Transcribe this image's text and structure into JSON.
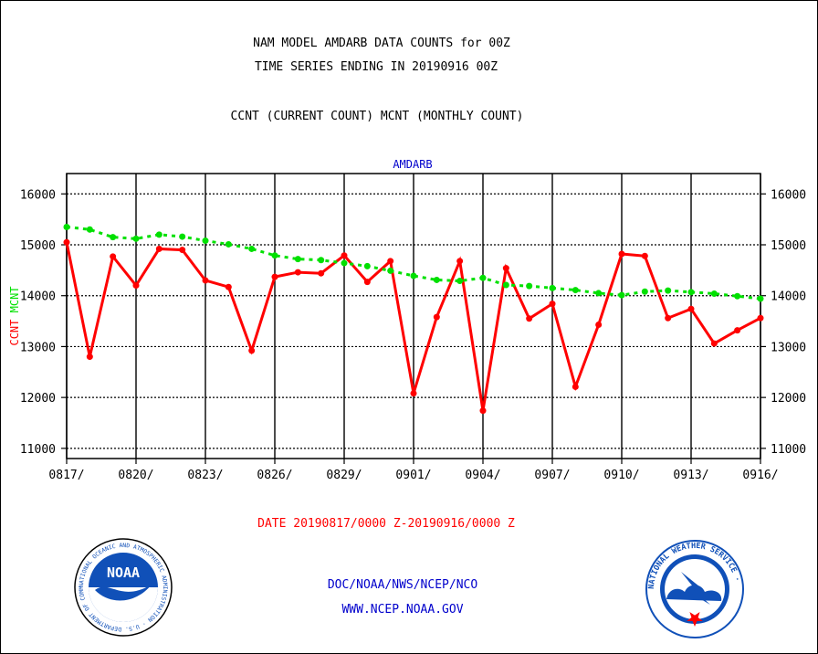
{
  "header": {
    "line1": "NAM MODEL AMDARB DATA COUNTS for 00Z",
    "line2": "TIME SERIES ENDING IN 20190916 00Z",
    "line3": "CCNT (CURRENT COUNT) MCNT (MONTHLY COUNT)"
  },
  "footer": {
    "date_range": "DATE 20190817/0000 Z-20190916/0000 Z",
    "org": "DOC/NOAA/NWS/NCEP/NCO",
    "url": "WWW.NCEP.NOAA.GOV"
  },
  "logos": {
    "left_text": "NOAA",
    "left_ring": "NATIONAL OCEANIC AND ATMOSPHERIC ADMINISTRATION · U.S. DEPARTMENT OF COMMERCE ·",
    "right_ring": "NATIONAL WEATHER SERVICE ·"
  },
  "colors": {
    "ccnt": "#ff0000",
    "mcnt": "#00e000",
    "title_blue": "#0000cc",
    "date_red": "#ff0000",
    "grid": "#000000"
  },
  "chart_data": {
    "type": "line",
    "title": "AMDARB",
    "ylabel_parts": [
      {
        "text": "CCNT",
        "color": "#ff0000"
      },
      {
        "text": "MCNT",
        "color": "#00e000"
      }
    ],
    "x": [
      "0817",
      "0818",
      "0819",
      "0820",
      "0821",
      "0822",
      "0823",
      "0824",
      "0825",
      "0826",
      "0827",
      "0828",
      "0829",
      "0830",
      "0831",
      "0901",
      "0902",
      "0903",
      "0904",
      "0905",
      "0906",
      "0907",
      "0908",
      "0909",
      "0910",
      "0911",
      "0912",
      "0913",
      "0914",
      "0915",
      "0916"
    ],
    "x_tick_labels": [
      "0817/",
      "0820/",
      "0823/",
      "0826/",
      "0829/",
      "0901/",
      "0904/",
      "0907/",
      "0910/",
      "0913/",
      "0916/"
    ],
    "x_tick_every": 3,
    "ylim": [
      10800,
      16400
    ],
    "yticks": [
      11000,
      12000,
      13000,
      14000,
      15000,
      16000
    ],
    "grid": true,
    "series": [
      {
        "name": "CCNT",
        "color": "#ff0000",
        "values": [
          15050,
          12800,
          14770,
          14200,
          14920,
          14900,
          14300,
          14170,
          12920,
          14370,
          14460,
          14440,
          14790,
          14270,
          14680,
          12080,
          13580,
          14680,
          11740,
          14540,
          13550,
          13840,
          12210,
          13430,
          14820,
          14780,
          13560,
          13740,
          13060,
          13320,
          13560
        ]
      },
      {
        "name": "MCNT",
        "color": "#00e000",
        "values": [
          15350,
          15300,
          15150,
          15120,
          15200,
          15160,
          15080,
          15010,
          14920,
          14790,
          14720,
          14700,
          14640,
          14580,
          14490,
          14390,
          14310,
          14290,
          14350,
          14210,
          14190,
          14150,
          14110,
          14050,
          14010,
          14080,
          14100,
          14070,
          14040,
          13990,
          13940
        ]
      }
    ]
  }
}
